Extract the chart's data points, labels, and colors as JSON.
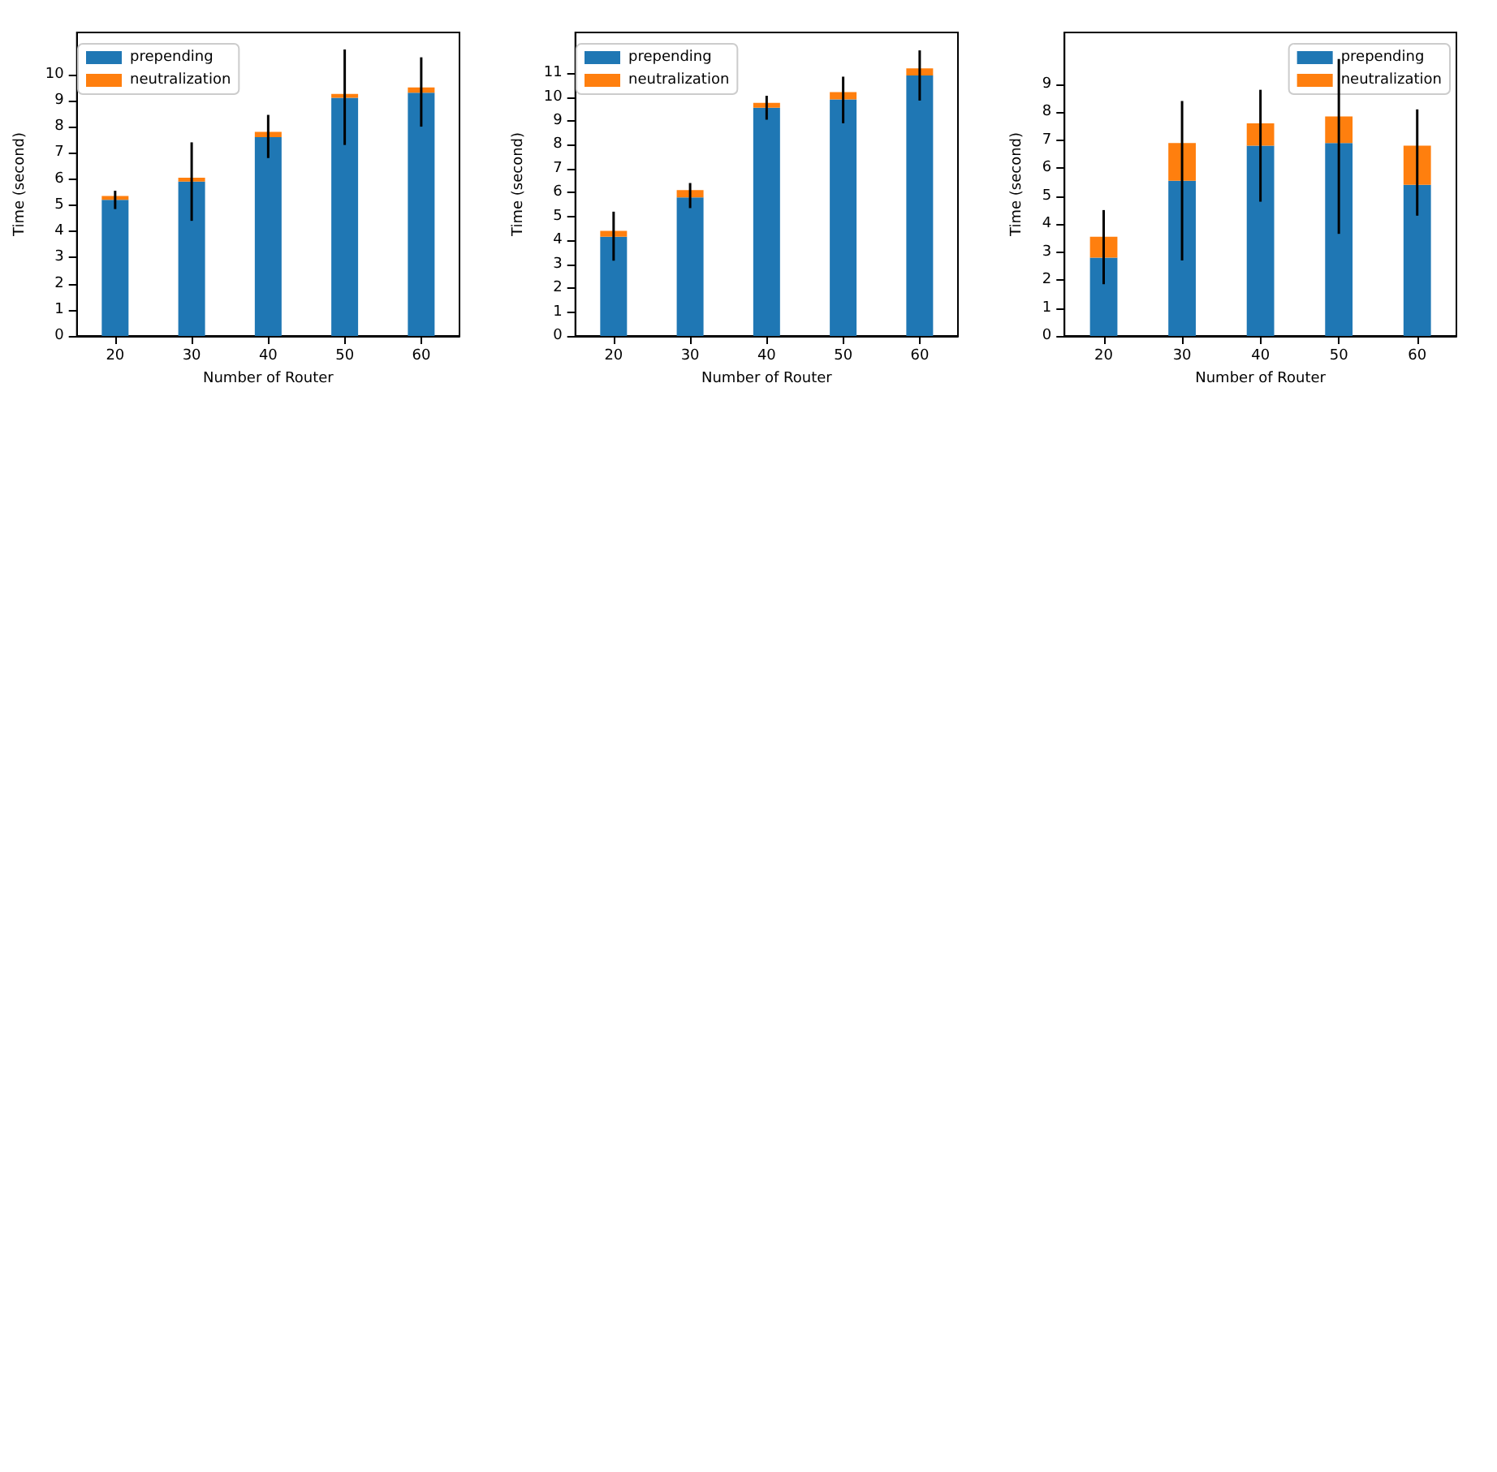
{
  "chart_data": [
    {
      "type": "bar",
      "stacked": true,
      "xlabel": "Number of Router",
      "ylabel": "Time (second)",
      "categories": [
        "20",
        "30",
        "40",
        "50",
        "60"
      ],
      "ylim": [
        0,
        11.6
      ],
      "yticks": [
        0,
        1,
        2,
        3,
        4,
        5,
        6,
        7,
        8,
        9,
        10
      ],
      "legend": "top left",
      "grid": false,
      "series": [
        {
          "name": "prepending",
          "color": "#1f77b4",
          "values": [
            5.2,
            5.9,
            7.6,
            9.1,
            9.3
          ]
        },
        {
          "name": "neutralization",
          "color": "#ff7f0e",
          "values": [
            0.15,
            0.15,
            0.2,
            0.15,
            0.2
          ],
          "errors": [
            [
              4.85,
              5.55
            ],
            [
              4.4,
              7.4
            ],
            [
              6.8,
              8.45
            ],
            [
              7.3,
              10.95
            ],
            [
              8.0,
              10.65
            ]
          ]
        }
      ]
    },
    {
      "type": "bar",
      "stacked": true,
      "xlabel": "Number of Router",
      "ylabel": "Time (second)",
      "categories": [
        "20",
        "30",
        "40",
        "50",
        "60"
      ],
      "ylim": [
        0,
        12.7
      ],
      "yticks": [
        0,
        1,
        2,
        3,
        4,
        5,
        6,
        7,
        8,
        9,
        10,
        11
      ],
      "legend": "top left",
      "grid": false,
      "series": [
        {
          "name": "prepending",
          "color": "#1f77b4",
          "values": [
            4.15,
            5.8,
            9.55,
            9.9,
            10.9
          ]
        },
        {
          "name": "neutralization",
          "color": "#ff7f0e",
          "values": [
            0.25,
            0.3,
            0.2,
            0.3,
            0.3
          ],
          "errors": [
            [
              3.15,
              5.2
            ],
            [
              5.35,
              6.4
            ],
            [
              9.05,
              10.05
            ],
            [
              8.9,
              10.85
            ],
            [
              9.85,
              11.95
            ]
          ]
        }
      ]
    },
    {
      "type": "bar",
      "stacked": true,
      "xlabel": "Number of Router",
      "ylabel": "Time (second)",
      "categories": [
        "20",
        "30",
        "40",
        "50",
        "60"
      ],
      "ylim": [
        0,
        10.85
      ],
      "yticks": [
        0,
        1,
        2,
        3,
        4,
        5,
        6,
        7,
        8,
        9
      ],
      "legend": "top right",
      "grid": false,
      "series": [
        {
          "name": "prepending",
          "color": "#1f77b4",
          "values": [
            2.8,
            5.55,
            6.8,
            6.9,
            5.4
          ]
        },
        {
          "name": "neutralization",
          "color": "#ff7f0e",
          "values": [
            0.75,
            1.35,
            0.8,
            0.95,
            1.4
          ],
          "errors": [
            [
              1.85,
              4.5
            ],
            [
              2.7,
              8.4
            ],
            [
              4.8,
              8.8
            ],
            [
              3.65,
              9.9
            ],
            [
              4.3,
              8.1
            ]
          ]
        }
      ]
    }
  ]
}
